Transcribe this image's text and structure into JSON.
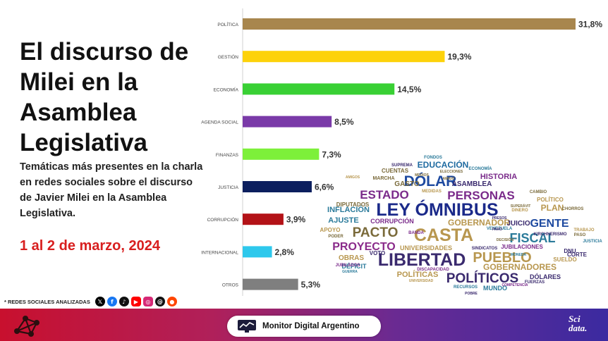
{
  "header": {
    "title": "El discurso de Milei en la Asamblea Legislativa",
    "subtitle": "Temáticas más presentes en la charla en redes sociales sobre el discurso de Javier Milei en la Asamblea Legislativa.",
    "date": "1 al 2 de marzo, 2024"
  },
  "social": {
    "label": "* REDES SOCIALES ANALIZADAS",
    "icons": [
      "x-icon",
      "facebook-icon",
      "tiktok-icon",
      "youtube-icon",
      "instagram-icon",
      "threads-icon",
      "reddit-icon"
    ]
  },
  "chart_data": {
    "type": "bar",
    "orientation": "horizontal",
    "categories": [
      "POLÍTICA",
      "GESTIÓN",
      "ECONOMÍA",
      "AGENDA SOCIAL",
      "FINANZAS",
      "JUSTICIA",
      "CORRUPCIÓN",
      "INTERNACIONAL",
      "OTROS"
    ],
    "values": [
      31.8,
      19.3,
      14.5,
      8.5,
      7.3,
      6.6,
      3.9,
      2.8,
      5.3
    ],
    "value_labels": [
      "31,8%",
      "19,3%",
      "14,5%",
      "8,5%",
      "7,3%",
      "6,6%",
      "3,9%",
      "2,8%",
      "5,3%"
    ],
    "colors": [
      "#a8864d",
      "#fdd20a",
      "#39d034",
      "#7a3aa8",
      "#7df03a",
      "#0c1f5e",
      "#b31217",
      "#2ec8ec",
      "#7f7f7f"
    ],
    "xlim": [
      0,
      31.8
    ],
    "grid": false
  },
  "wordcloud": {
    "words": [
      {
        "text": "LEY ÓMNIBUS",
        "color": "#1b2a8a",
        "weight": 10
      },
      {
        "text": "CASTA",
        "color": "#b8974f",
        "weight": 9
      },
      {
        "text": "LIBERTAD",
        "color": "#3a2a6e",
        "weight": 9
      },
      {
        "text": "PUEBLO",
        "color": "#b8974f",
        "weight": 8
      },
      {
        "text": "DÓLAR",
        "color": "#1e4aa0",
        "weight": 8
      },
      {
        "text": "PERSONAS",
        "color": "#7a2a8a",
        "weight": 7
      },
      {
        "text": "FISCAL",
        "color": "#2a7a9a",
        "weight": 7
      },
      {
        "text": "POLÍTICOS",
        "color": "#3a2a6e",
        "weight": 7
      },
      {
        "text": "PACTO",
        "color": "#7a6a3a",
        "weight": 7
      },
      {
        "text": "ESTADO",
        "color": "#7a2a8a",
        "weight": 7
      },
      {
        "text": "PROYECTO",
        "color": "#8a2a8a",
        "weight": 6
      },
      {
        "text": "GENTE",
        "color": "#1e4aa0",
        "weight": 6
      },
      {
        "text": "EDUCACIÓN",
        "color": "#1e6aa0",
        "weight": 4
      },
      {
        "text": "PLAN",
        "color": "#b8974f",
        "weight": 4
      },
      {
        "text": "GOBERNADOR",
        "color": "#b8974f",
        "weight": 4
      },
      {
        "text": "GOBERNADORES",
        "color": "#b8974f",
        "weight": 4
      },
      {
        "text": "ASAMBLEA",
        "color": "#3a2a6e",
        "weight": 3
      },
      {
        "text": "HISTORIA",
        "color": "#7a2a8a",
        "weight": 3
      },
      {
        "text": "INFLACIÓN",
        "color": "#2a7a9a",
        "weight": 3
      },
      {
        "text": "AJUSTE",
        "color": "#2a7a9a",
        "weight": 3
      },
      {
        "text": "POLÍTICAS",
        "color": "#b8974f",
        "weight": 3
      },
      {
        "text": "JUICIO",
        "color": "#3a2a6e",
        "weight": 3
      },
      {
        "text": "GASTO",
        "color": "#7a6a3a",
        "weight": 3
      },
      {
        "text": "OBRAS",
        "color": "#b8974f",
        "weight": 3
      },
      {
        "text": "UNIVERSIDADES",
        "color": "#b8974f",
        "weight": 2
      },
      {
        "text": "CORRUPCIÓN",
        "color": "#7a2a8a",
        "weight": 2
      },
      {
        "text": "DÓLARES",
        "color": "#3a2a6e",
        "weight": 2
      },
      {
        "text": "MUNDO",
        "color": "#2a7a9a",
        "weight": 2
      },
      {
        "text": "CUENTAS",
        "color": "#7a6a3a",
        "weight": 2
      },
      {
        "text": "DIPUTADOS",
        "color": "#7a6a3a",
        "weight": 2
      },
      {
        "text": "JUBILACIONES",
        "color": "#7a2a8a",
        "weight": 2
      },
      {
        "text": "CORTE",
        "color": "#3a2a6e",
        "weight": 2
      },
      {
        "text": "SUELDO",
        "color": "#b8974f",
        "weight": 2
      },
      {
        "text": "DNU",
        "color": "#3a2a6e",
        "weight": 2
      },
      {
        "text": "VOTO",
        "color": "#3a2a6e",
        "weight": 2
      },
      {
        "text": "DÉFICIT",
        "color": "#2a7a9a",
        "weight": 2
      },
      {
        "text": "POLÍTICO",
        "color": "#b8974f",
        "weight": 2
      },
      {
        "text": "MARCHA",
        "color": "#7a6a3a",
        "weight": 2
      },
      {
        "text": "SUPREMA",
        "color": "#3a2a6e",
        "weight": 1
      },
      {
        "text": "FONDOS",
        "color": "#2a7a9a",
        "weight": 1
      },
      {
        "text": "ECONOMÍA",
        "color": "#2a7a9a",
        "weight": 1
      },
      {
        "text": "APOYO",
        "color": "#b8974f",
        "weight": 1
      },
      {
        "text": "SINDICATOS",
        "color": "#3a2a6e",
        "weight": 1
      },
      {
        "text": "JUSTICIA",
        "color": "#2a7a9a",
        "weight": 1
      },
      {
        "text": "PASO",
        "color": "#7a6a3a",
        "weight": 1
      },
      {
        "text": "BANDA",
        "color": "#7a2a8a",
        "weight": 1
      },
      {
        "text": "VENEZUELA",
        "color": "#2a7a9a",
        "weight": 1
      },
      {
        "text": "CAMBIO",
        "color": "#7a6a3a",
        "weight": 1
      },
      {
        "text": "DINERO",
        "color": "#b8974f",
        "weight": 1
      },
      {
        "text": "CHORROS",
        "color": "#7a6a3a",
        "weight": 1
      },
      {
        "text": "TRABAJO",
        "color": "#b8974f",
        "weight": 1
      },
      {
        "text": "FUERZAS",
        "color": "#3a2a6e",
        "weight": 1
      },
      {
        "text": "DISCAPACIDAD",
        "color": "#7a2a8a",
        "weight": 1
      },
      {
        "text": "UNIVERSIDAD",
        "color": "#b8974f",
        "weight": 1
      },
      {
        "text": "RECURSOS",
        "color": "#2a7a9a",
        "weight": 1
      },
      {
        "text": "DECISIÓN",
        "color": "#7a6a3a",
        "weight": 1
      },
      {
        "text": "MEDIDAS",
        "color": "#b8974f",
        "weight": 1
      },
      {
        "text": "PODER",
        "color": "#7a6a3a",
        "weight": 1
      },
      {
        "text": "JUBILADOS",
        "color": "#7a2a8a",
        "weight": 1
      },
      {
        "text": "PARO",
        "color": "#3a2a6e",
        "weight": 1
      },
      {
        "text": "ELECCIONES",
        "color": "#7a6a3a",
        "weight": 1
      },
      {
        "text": "MONEDA",
        "color": "#2a7a9a",
        "weight": 1
      },
      {
        "text": "KIRCHNERISMO",
        "color": "#3a2a6e",
        "weight": 1
      },
      {
        "text": "AMIGOS",
        "color": "#b8974f",
        "weight": 1
      },
      {
        "text": "GUERRA",
        "color": "#2a7a9a",
        "weight": 1
      },
      {
        "text": "COMPETENCIA",
        "color": "#7a2a8a",
        "weight": 1
      },
      {
        "text": "POBRE",
        "color": "#3a2a6e",
        "weight": 1
      },
      {
        "text": "MEDIOS",
        "color": "#7a6a3a",
        "weight": 1
      },
      {
        "text": "PRESOS",
        "color": "#3a2a6e",
        "weight": 1
      },
      {
        "text": "AMIGO",
        "color": "#7a6a3a",
        "weight": 1
      },
      {
        "text": "SUPERÁVIT",
        "color": "#7a6a3a",
        "weight": 1
      }
    ]
  },
  "footer": {
    "brand": "Monitor Digital Argentino",
    "partner_line1": "Sci",
    "partner_line2": "data."
  }
}
